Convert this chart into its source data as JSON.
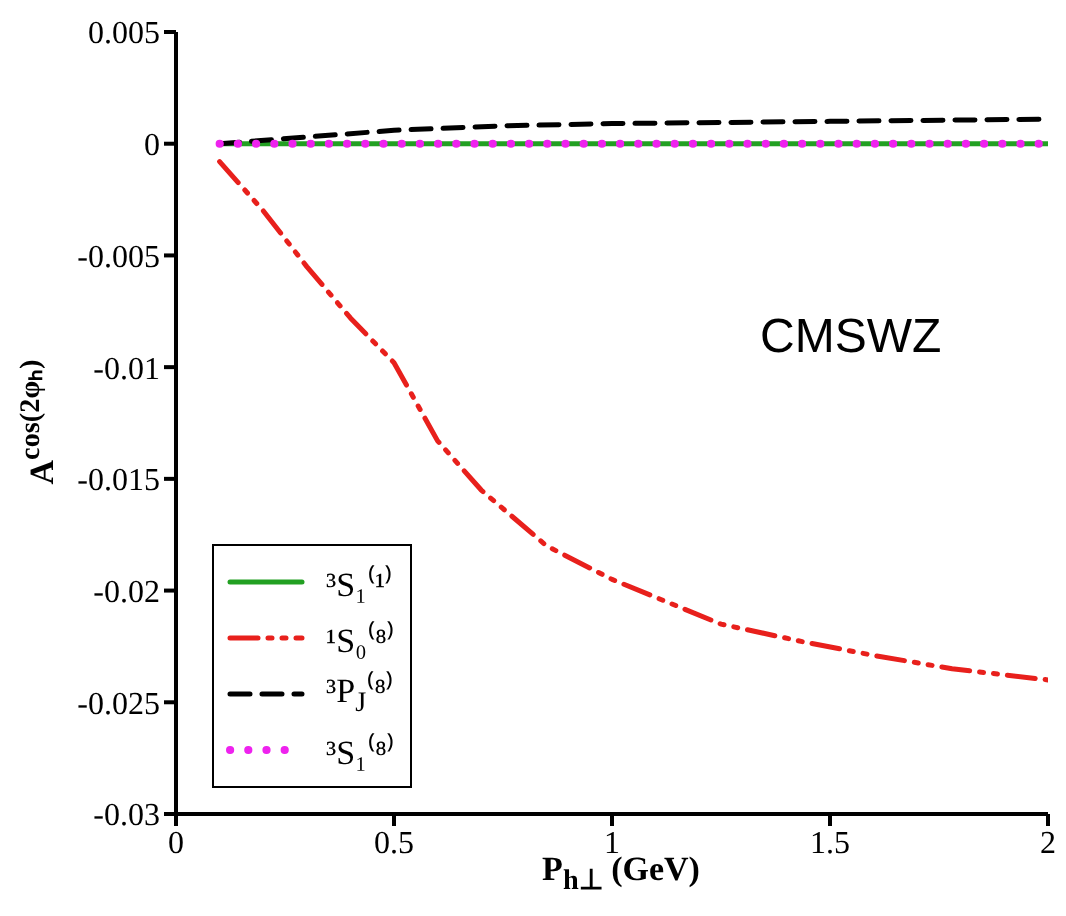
{
  "chart_data": {
    "type": "line",
    "xlabel": "P$_{h⊥}$ (GeV)",
    "ylabel": "A$^{cos(2φₕ)}$",
    "annotations": [
      "CMSWZ"
    ],
    "xlim": [
      0,
      2
    ],
    "xticks": [
      0,
      0.5,
      1,
      1.5,
      2
    ],
    "ylim": [
      -0.03,
      0.005
    ],
    "yticks": [
      -0.03,
      -0.025,
      -0.02,
      -0.015,
      -0.01,
      -0.005,
      0,
      0.005
    ],
    "grid": false,
    "legend": "bottom left",
    "marker": "none",
    "series": [
      {
        "name": "³S₁⁽¹⁾",
        "color": "#22a022",
        "line_style": "solid",
        "x": [
          0.1,
          0.5,
          1,
          1.5,
          2
        ],
        "values": [
          0,
          0,
          0,
          0,
          0
        ]
      },
      {
        "name": "¹S₀⁽⁸⁾",
        "color": "#e8201c",
        "line_style": "dashdot",
        "x": [
          0.1,
          0.2,
          0.3,
          0.4,
          0.5,
          0.6,
          0.7,
          0.85,
          1.0,
          1.1,
          1.25,
          1.44,
          1.6,
          1.78,
          2.0
        ],
        "values": [
          -0.0008,
          -0.003,
          -0.0055,
          -0.0078,
          -0.0098,
          -0.0133,
          -0.0155,
          -0.018,
          -0.0195,
          -0.0203,
          -0.0215,
          -0.0223,
          -0.0229,
          -0.0235,
          -0.024
        ]
      },
      {
        "name": "³P$_{J}$⁽⁸⁾",
        "color": "#000000",
        "line_style": "dashed",
        "x": [
          0.1,
          0.3,
          0.5,
          0.75,
          1,
          1.5,
          2
        ],
        "values": [
          0,
          0.0003,
          0.0006,
          0.0008,
          0.0009,
          0.001,
          0.0011
        ]
      },
      {
        "name": "³S₁⁽⁸⁾",
        "color": "#ee22ee",
        "line_style": "dotted",
        "x": [
          0.1,
          0.5,
          1,
          1.5,
          2
        ],
        "values": [
          0,
          0,
          0,
          0,
          0
        ]
      }
    ]
  }
}
